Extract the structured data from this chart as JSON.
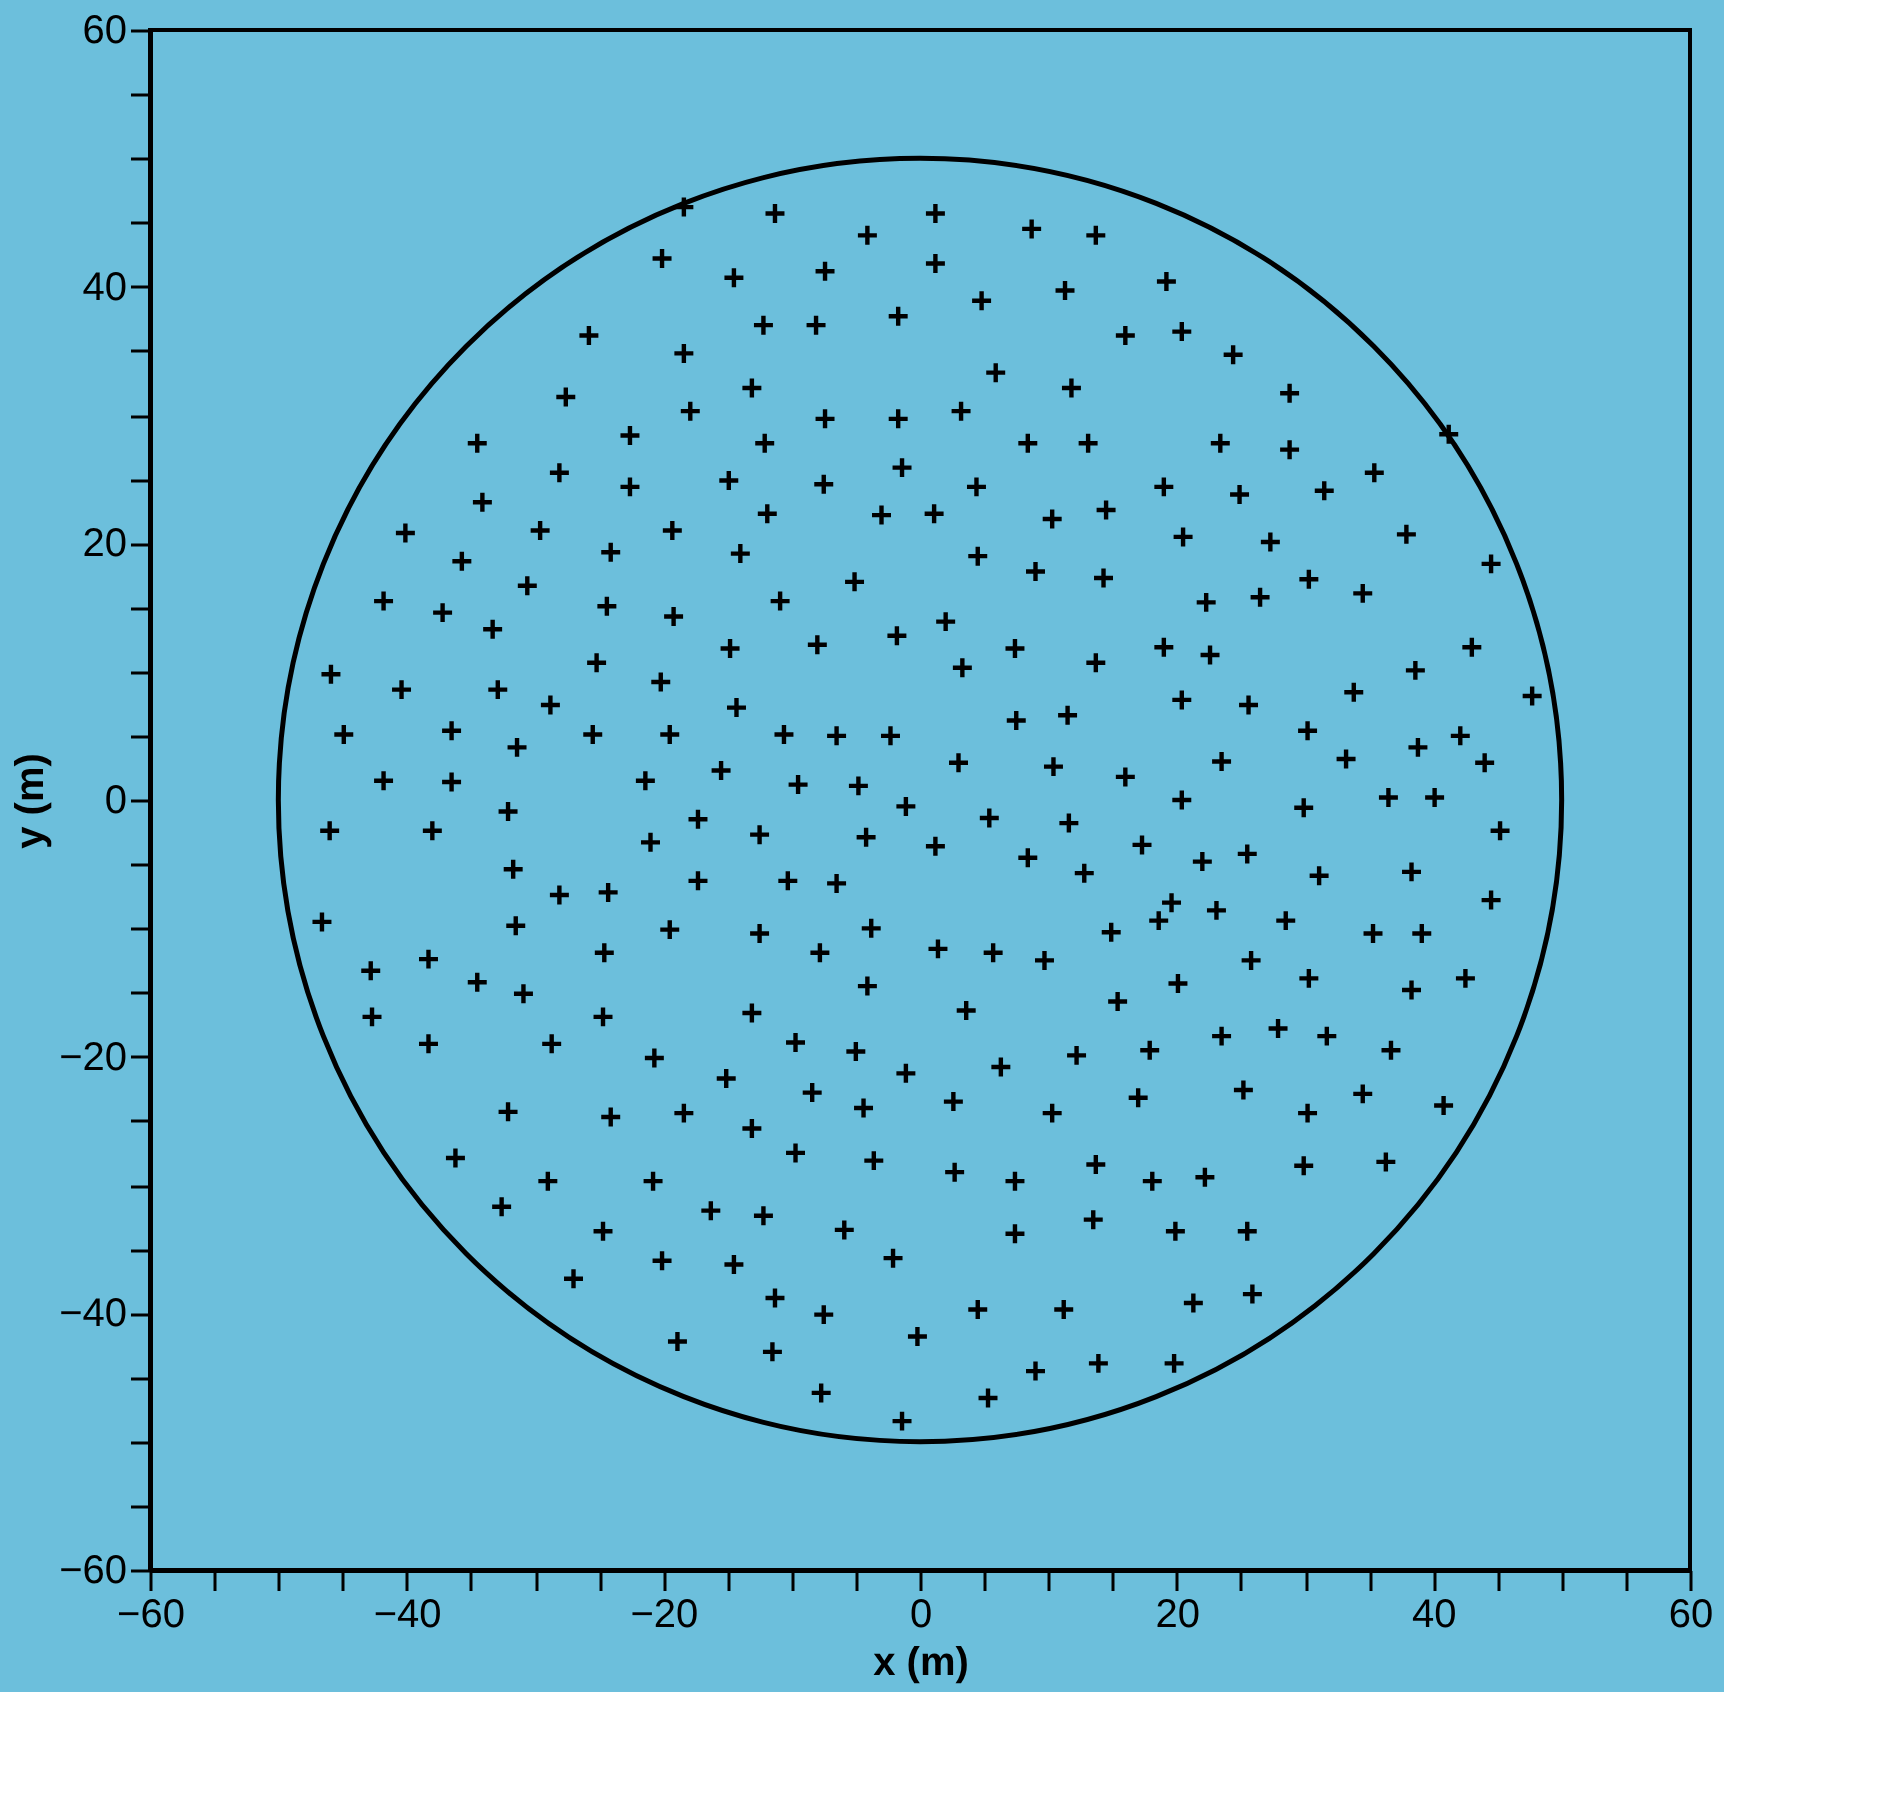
{
  "chart_data": {
    "type": "scatter",
    "xlabel": "x (m)",
    "ylabel": "y (m)",
    "xlim": [
      -60,
      60
    ],
    "ylim": [
      -60,
      60
    ],
    "xticks": [
      -60,
      {
        "value": -55,
        "label": null
      },
      {
        "value": -50,
        "label": null
      },
      {
        "value": -45,
        "label": null
      },
      -40,
      {
        "value": -35,
        "label": null
      },
      {
        "value": -30,
        "label": null
      },
      {
        "value": -25,
        "label": null
      },
      -20,
      {
        "value": -15,
        "label": null
      },
      {
        "value": -10,
        "label": null
      },
      {
        "value": -5,
        "label": null
      },
      0,
      {
        "value": 5,
        "label": null
      },
      {
        "value": 10,
        "label": null
      },
      {
        "value": 15,
        "label": null
      },
      20,
      {
        "value": 25,
        "label": null
      },
      {
        "value": 30,
        "label": null
      },
      {
        "value": 35,
        "label": null
      },
      40,
      {
        "value": 45,
        "label": null
      },
      {
        "value": 50,
        "label": null
      },
      {
        "value": 55,
        "label": null
      },
      60
    ],
    "yticks": [
      -60,
      {
        "value": -55,
        "label": null
      },
      {
        "value": -50,
        "label": null
      },
      {
        "value": -45,
        "label": null
      },
      -40,
      {
        "value": -35,
        "label": null
      },
      {
        "value": -30,
        "label": null
      },
      {
        "value": -25,
        "label": null
      },
      -20,
      {
        "value": -15,
        "label": null
      },
      {
        "value": -10,
        "label": null
      },
      {
        "value": -5,
        "label": null
      },
      0,
      {
        "value": 5,
        "label": null
      },
      {
        "value": 10,
        "label": null
      },
      {
        "value": 15,
        "label": null
      },
      20,
      {
        "value": 25,
        "label": null
      },
      {
        "value": 30,
        "label": null
      },
      {
        "value": 35,
        "label": null
      },
      40,
      {
        "value": 45,
        "label": null
      },
      {
        "value": 50,
        "label": null
      },
      {
        "value": 55,
        "label": null
      },
      60
    ],
    "grid": false,
    "legend": false,
    "series": [
      {
        "color": "#000000",
        "marker": "cross",
        "x": [
          -18.4,
          -11.3,
          -4.1,
          1.2,
          8.7,
          13.7,
          -20.1,
          -14.5,
          -7.4,
          1.2,
          4.8,
          11.3,
          19.2,
          20.4,
          16.0,
          -1.7,
          -8.1,
          -12.2,
          -25.8,
          -18.4,
          5.9,
          24.4,
          -27.6,
          -13.1,
          11.8,
          28.8,
          -17.9,
          -7.4,
          -1.7,
          3.2,
          -22.6,
          -12.1,
          8.4,
          13.1,
          23.4,
          28.8,
          -34.5,
          41.2,
          -28.1,
          -1.4,
          -14.9,
          -7.5,
          4.4,
          19.0,
          24.9,
          31.5,
          35.4,
          -22.6,
          -34.1,
          -11.9,
          -3.0,
          1.1,
          10.3,
          14.5,
          -40.1,
          -29.6,
          -19.3,
          20.5,
          37.9,
          -35.7,
          -24.1,
          -14.0,
          4.5,
          9.0,
          14.3,
          27.3,
          44.5,
          -30.6,
          -5.1,
          30.3,
          34.5,
          -41.8,
          -37.2,
          -24.4,
          -10.9,
          22.3,
          26.5,
          -33.3,
          -19.2,
          2.0,
          -14.8,
          -8.0,
          -1.8,
          7.4,
          19.0,
          22.6,
          13.7,
          3.3,
          -25.2,
          -45.9,
          -20.2,
          -32.9,
          -40.4,
          33.8,
          38.6,
          43.0,
          47.7,
          20.4,
          25.6,
          -28.8,
          -14.3,
          7.5,
          11.5,
          -44.9,
          -36.5,
          -25.5,
          -19.5,
          -10.6,
          -6.5,
          -2.3,
          -31.4,
          30.2,
          38.8,
          42.1,
          -15.5,
          3.0,
          10.4,
          23.5,
          33.2,
          44.0,
          -41.8,
          -36.5,
          -21.4,
          -9.5,
          -4.8,
          16.0,
          -32.1,
          -1.1,
          20.4,
          29.9,
          36.5,
          40.1,
          -46.0,
          -38.0,
          -17.3,
          -12.5,
          -4.2,
          5.4,
          11.6,
          45.2,
          -21.0,
          1.2,
          17.3,
          22.0,
          25.5,
          8.4,
          12.8,
          -31.7,
          -17.3,
          -10.3,
          -6.5,
          31.1,
          38.3,
          -28.1,
          -24.3,
          -46.6,
          19.6,
          23.1,
          44.5,
          -31.5,
          -19.5,
          -12.5,
          -3.8,
          14.9,
          28.5,
          18.6,
          35.3,
          39.1,
          -38.3,
          -24.6,
          -7.8,
          1.4,
          5.7,
          9.7,
          25.8,
          -42.8,
          -34.5,
          30.3,
          42.5,
          -30.9,
          -4.1,
          15.4,
          20.1,
          38.3,
          -42.7,
          -24.7,
          -13.1,
          3.6,
          31.7,
          23.5,
          27.9,
          -38.3,
          -28.7,
          -9.7,
          -5.0,
          12.2,
          17.9,
          36.7,
          -20.7,
          -1.1,
          6.3,
          -15.1,
          -8.4,
          17.0,
          34.5,
          -32.1,
          -24.1,
          -18.4,
          -13.1,
          -4.4,
          2.6,
          10.3,
          30.2,
          40.8,
          25.2,
          -36.2,
          -9.7,
          -3.6,
          2.7,
          -20.8,
          7.4,
          13.7,
          22.2,
          29.9,
          36.3,
          18.1,
          -29.0,
          -32.6,
          -16.3,
          -12.2,
          -24.7,
          -5.9,
          7.4,
          13.5,
          19.9,
          25.5,
          -20.1,
          -14.5,
          -2.1,
          -27.0,
          -11.3,
          -7.5,
          4.5,
          11.2,
          21.3,
          25.9,
          -0.2,
          -18.9,
          -11.5,
          9.0,
          13.9,
          19.8,
          -7.7,
          5.3,
          -1.4
        ],
        "values": [
          46.2,
          45.7,
          44.0,
          45.7,
          44.5,
          44.0,
          42.2,
          40.7,
          41.2,
          41.8,
          38.9,
          39.7,
          40.4,
          36.5,
          36.2,
          37.7,
          37.0,
          37.0,
          36.2,
          34.8,
          33.3,
          34.7,
          31.4,
          32.1,
          32.1,
          31.7,
          30.3,
          29.7,
          29.7,
          30.3,
          28.4,
          27.8,
          27.8,
          27.8,
          27.8,
          27.3,
          27.8,
          28.5,
          25.5,
          25.9,
          24.9,
          24.6,
          24.4,
          24.4,
          23.8,
          24.1,
          25.5,
          24.4,
          23.2,
          22.3,
          22.2,
          22.3,
          21.9,
          22.6,
          20.8,
          21.0,
          21.0,
          20.5,
          20.7,
          18.6,
          19.3,
          19.2,
          19.0,
          17.8,
          17.3,
          20.1,
          18.4,
          16.7,
          17.0,
          17.2,
          16.1,
          15.5,
          14.6,
          15.1,
          15.5,
          15.4,
          15.8,
          13.3,
          14.3,
          13.9,
          11.8,
          12.1,
          12.8,
          11.8,
          11.9,
          11.3,
          10.7,
          10.3,
          10.7,
          9.8,
          9.2,
          8.6,
          8.6,
          8.4,
          10.1,
          11.9,
          8.1,
          7.8,
          7.4,
          7.4,
          7.2,
          6.2,
          6.6,
          5.1,
          5.4,
          5.1,
          5.1,
          5.1,
          5.0,
          5.0,
          4.1,
          5.4,
          4.1,
          5.0,
          2.3,
          2.9,
          2.6,
          3.0,
          3.2,
          2.9,
          1.5,
          1.4,
          1.5,
          1.2,
          1.1,
          1.8,
          -0.9,
          -0.5,
          0.0,
          -0.6,
          0.2,
          0.2,
          -2.4,
          -2.4,
          -1.5,
          -2.7,
          -2.9,
          -1.4,
          -1.8,
          -2.4,
          -3.3,
          -3.6,
          -3.5,
          -4.8,
          -4.2,
          -4.5,
          -5.7,
          -5.4,
          -6.3,
          -6.3,
          -6.5,
          -5.9,
          -5.6,
          -7.4,
          -7.2,
          -9.5,
          -8.0,
          -8.6,
          -7.8,
          -9.8,
          -10.1,
          -10.4,
          -10.0,
          -10.3,
          -9.4,
          -9.4,
          -10.4,
          -10.4,
          -12.4,
          -11.9,
          -11.9,
          -11.6,
          -11.9,
          -12.5,
          -12.5,
          -13.3,
          -14.2,
          -13.9,
          -13.9,
          -15.1,
          -14.5,
          -15.7,
          -14.3,
          -14.8,
          -16.9,
          -16.9,
          -16.6,
          -16.4,
          -18.4,
          -18.4,
          -17.8,
          -19.0,
          -19.0,
          -18.9,
          -19.6,
          -19.9,
          -19.5,
          -19.5,
          -20.1,
          -21.3,
          -20.8,
          -21.7,
          -22.8,
          -23.2,
          -22.9,
          -24.3,
          -24.7,
          -24.4,
          -25.6,
          -24.0,
          -23.5,
          -24.4,
          -24.4,
          -23.8,
          -22.6,
          -27.9,
          -27.5,
          -28.1,
          -29.0,
          -29.7,
          -29.7,
          -28.4,
          -29.4,
          -28.5,
          -28.2,
          -29.7,
          -29.7,
          -31.7,
          -32.0,
          -32.4,
          -33.6,
          -33.5,
          -33.8,
          -32.7,
          -33.6,
          -33.6,
          -35.9,
          -36.2,
          -35.7,
          -37.3,
          -38.8,
          -40.1,
          -39.7,
          -39.7,
          -39.2,
          -38.5,
          -41.8,
          -42.2,
          -43.0,
          -44.5,
          -43.9,
          -43.9,
          -46.2,
          -46.6,
          -48.4
        ]
      }
    ]
  }
}
